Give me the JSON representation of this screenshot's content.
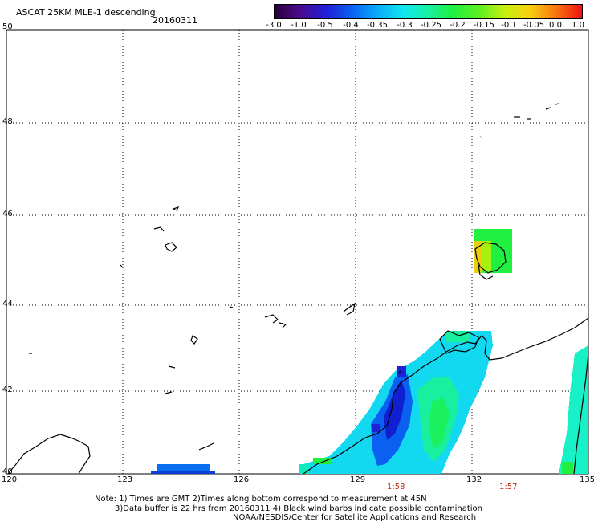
{
  "header": {
    "title": "ASCAT 25KM MLE-1 descending",
    "date": "20160311"
  },
  "colorbar": {
    "tick_labels": [
      "-3.0",
      "-1.0",
      "-0.5",
      "-0.4",
      "-0.35",
      "-0.3",
      "-0.25",
      "-0.2",
      "-0.15",
      "-0.1",
      "-0.05",
      "0.0",
      "1.0"
    ],
    "colors": [
      "#2a003a",
      "#4a0a8a",
      "#2020d8",
      "#0a60f0",
      "#0aa8f8",
      "#10e8f0",
      "#18f0a0",
      "#20f040",
      "#60f020",
      "#c8f010",
      "#f8d010",
      "#f87010",
      "#f01010"
    ]
  },
  "map": {
    "lat_labels": [
      "50",
      "48",
      "46",
      "44",
      "42",
      "40"
    ],
    "lon_labels": [
      "120",
      "123",
      "126",
      "129",
      "132",
      "135"
    ],
    "pass_times": [
      "1:58",
      "1:57"
    ]
  },
  "footer": {
    "line1": "Note: 1) Times are GMT 2)Times along bottom correspond to measurement at 45N",
    "line2": "3)Data buffer is 22 hrs from 20160311 4) Black wind barbs indicate possible contamination",
    "line3": "NOAA/NESDIS/Center for Satellite Applications and Research"
  }
}
